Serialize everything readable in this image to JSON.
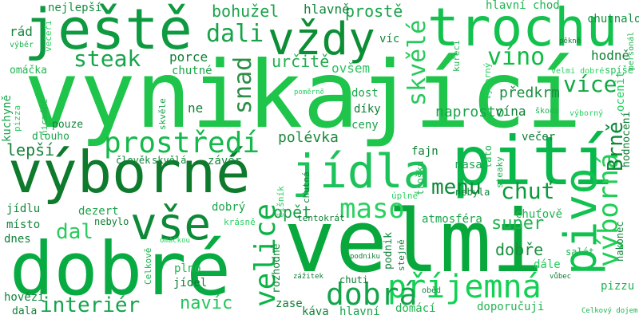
{
  "words": [
    {
      "text": "vynikající",
      "color": "#1ec54a"
    },
    {
      "text": "velmi",
      "color": "#09a83c"
    },
    {
      "text": "dobré",
      "color": "#08ab42"
    },
    {
      "text": "výborné",
      "color": "#0d7a2c"
    },
    {
      "text": "pití",
      "color": "#08b84a"
    },
    {
      "text": "trochu",
      "color": "#12c24d"
    },
    {
      "text": "ještě",
      "color": "#0e9a40"
    },
    {
      "text": "vždy",
      "color": "#0b8e34"
    },
    {
      "text": "jídla",
      "color": "#1cc25a"
    },
    {
      "text": "pivo",
      "color": "#12c250"
    },
    {
      "text": "příjemná",
      "color": "#12d154"
    },
    {
      "text": "vše",
      "color": "#0d8a38"
    },
    {
      "text": "prostředí",
      "color": "#13b94b"
    },
    {
      "text": "výborná",
      "color": "#1fcf55"
    },
    {
      "text": "velice",
      "color": "#0cb345"
    },
    {
      "text": "dobrá",
      "color": "#14a44a"
    },
    {
      "text": "maso",
      "color": "#2ad160"
    },
    {
      "text": "Brně",
      "color": "#0a8a36"
    },
    {
      "text": "víno",
      "color": "#10bb44"
    },
    {
      "text": "více",
      "color": "#12a842"
    },
    {
      "text": "skvělé",
      "color": "#26c95a"
    },
    {
      "text": "interiér",
      "color": "#16a44c"
    },
    {
      "text": "chuť",
      "color": "#0b9a3c"
    },
    {
      "text": "menu",
      "color": "#0b8a37"
    },
    {
      "text": "steak",
      "color": "#17a54b"
    },
    {
      "text": "dali",
      "color": "#16a447"
    },
    {
      "text": "snad",
      "color": "#2b8f45"
    },
    {
      "text": "navíc",
      "color": "#23c559"
    },
    {
      "text": "polévka",
      "color": "#1c8a3a"
    },
    {
      "text": "určitě",
      "color": "#1fae4c"
    },
    {
      "text": "super",
      "color": "#1fb54f"
    },
    {
      "text": "dal",
      "color": "#2bca5e"
    },
    {
      "text": "lepší",
      "color": "#16823a"
    },
    {
      "text": "opět",
      "color": "#15a046"
    },
    {
      "text": "dobře",
      "color": "#19913f"
    },
    {
      "text": "naprosto",
      "color": "#1aa44a"
    },
    {
      "text": "bohužel",
      "color": "#1aa44a"
    },
    {
      "text": "prostě",
      "color": "#1aa44a"
    },
    {
      "text": "předkrm",
      "color": "#1a8f40"
    },
    {
      "text": "ocenit",
      "color": "#1fcf5a"
    },
    {
      "text": "rád",
      "color": "#13863a"
    },
    {
      "text": "hlavně",
      "color": "#11863a"
    },
    {
      "text": "hlavní chod",
      "color": "#1fb54f"
    },
    {
      "text": "chutnalo",
      "color": "#13903f"
    },
    {
      "text": "nejlepší",
      "color": "#12903e"
    },
    {
      "text": "porce",
      "color": "#0f7f34"
    },
    {
      "text": "chutné",
      "color": "#1aa44a"
    },
    {
      "text": "ovšem",
      "color": "#2ac45f"
    },
    {
      "text": "hodně",
      "color": "#0f7f34"
    },
    {
      "text": "spíše",
      "color": "#21c25a"
    },
    {
      "text": "velmi dobré",
      "color": "#2ad160"
    },
    {
      "text": "dost",
      "color": "#1aa44a"
    },
    {
      "text": "díky",
      "color": "#0f7f34"
    },
    {
      "text": "ceny",
      "color": "#1aa44a"
    },
    {
      "text": "vína",
      "color": "#0f7f34"
    },
    {
      "text": "škoda",
      "color": "#1fb54f"
    },
    {
      "text": "výborný",
      "color": "#2ad160"
    },
    {
      "text": "hodnocení",
      "color": "#0f7f34"
    },
    {
      "text": "večer",
      "color": "#0f7f34"
    },
    {
      "text": "výborný",
      "color": "#1fcf5a"
    },
    {
      "text": "poměrně",
      "color": "#2ad160"
    },
    {
      "text": "kuchyně",
      "color": "#1aa44a"
    },
    {
      "text": "pizza",
      "color": "#2ad160"
    },
    {
      "text": "pouze",
      "color": "#11863a"
    },
    {
      "text": "nicméně",
      "color": "#1fb54f"
    },
    {
      "text": "skvěle",
      "color": "#1aa44a"
    },
    {
      "text": "ne",
      "color": "#0f7f34"
    },
    {
      "text": "dlouho",
      "color": "#1aa44a"
    },
    {
      "text": "člověk",
      "color": "#11863a"
    },
    {
      "text": "skvělá",
      "color": "#11863a"
    },
    {
      "text": "závěr",
      "color": "#11863a"
    },
    {
      "text": "fajn",
      "color": "#0f7f34"
    },
    {
      "text": "masa",
      "color": "#1aa44a"
    },
    {
      "text": "tato",
      "color": "#1fb54f"
    },
    {
      "text": "steaky",
      "color": "#1fb54f"
    },
    {
      "text": "trošku",
      "color": "#1fb54f"
    },
    {
      "text": "nebyla",
      "color": "#11863a"
    },
    {
      "text": "úplně",
      "color": "#2ad160"
    },
    {
      "text": "chutná",
      "color": "#11863a"
    },
    {
      "text": "číšník",
      "color": "#2ad160"
    },
    {
      "text": "jídlu",
      "color": "#11863a"
    },
    {
      "text": "dezert",
      "color": "#1aa44a"
    },
    {
      "text": "dobrý",
      "color": "#1aa44a"
    },
    {
      "text": "místo",
      "color": "#11863a"
    },
    {
      "text": "nebylo",
      "color": "#0f7f34"
    },
    {
      "text": "krásně",
      "color": "#2ad160"
    },
    {
      "text": "dnes",
      "color": "#0f7f34"
    },
    {
      "text": "omáčkou",
      "color": "#2ad160"
    },
    {
      "text": "tentokrát",
      "color": "#0f7f34"
    },
    {
      "text": "atmosféra",
      "color": "#1aa44a"
    },
    {
      "text": "chuťově",
      "color": "#1fb54f"
    },
    {
      "text": "podnik",
      "color": "#11863a"
    },
    {
      "text": "podniku",
      "color": "#0f7f34"
    },
    {
      "text": "stejně",
      "color": "#11863a"
    },
    {
      "text": "dále",
      "color": "#1fcf5a"
    },
    {
      "text": "salát",
      "color": "#1fb54f"
    },
    {
      "text": "vůbec",
      "color": "#0f7f34"
    },
    {
      "text": "nakonec",
      "color": "#11863a"
    },
    {
      "text": "pizzu",
      "color": "#1fb54f"
    },
    {
      "text": "Celkově",
      "color": "#1fb54f"
    },
    {
      "text": "plno",
      "color": "#1fb54f"
    },
    {
      "text": "jídel",
      "color": "#0f7f34"
    },
    {
      "text": "rozhodně",
      "color": "#11863a"
    },
    {
      "text": "zážitek",
      "color": "#0f7f34"
    },
    {
      "text": "chuti",
      "color": "#0f7f34"
    },
    {
      "text": "oběd",
      "color": "#11863a"
    },
    {
      "text": "hovězí",
      "color": "#11863a"
    },
    {
      "text": "dala",
      "color": "#0f7f34"
    },
    {
      "text": "zase",
      "color": "#0f7f34"
    },
    {
      "text": "káva",
      "color": "#11863a"
    },
    {
      "text": "hlavní",
      "color": "#1aa44a"
    },
    {
      "text": "domácí",
      "color": "#1fb54f"
    },
    {
      "text": "doporučuji",
      "color": "#1fb54f"
    },
    {
      "text": "Celkový dojem",
      "color": "#1fb54f"
    },
    {
      "text": "kuřecí",
      "color": "#1fb54f"
    },
    {
      "text": "pěkně",
      "color": "#0f7f34"
    },
    {
      "text": "personál",
      "color": "#1fb54f"
    },
    {
      "text": "večeři",
      "color": "#2ad160"
    },
    {
      "text": "výběr",
      "color": "#1fb54f"
    },
    {
      "text": "omáčka",
      "color": "#1fb54f"
    },
    {
      "text": "víc",
      "color": "#11863a"
    }
  ]
}
